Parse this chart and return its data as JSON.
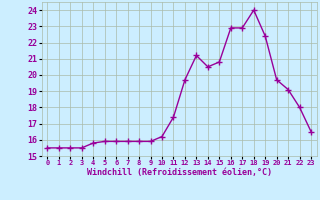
{
  "x": [
    0,
    1,
    2,
    3,
    4,
    5,
    6,
    7,
    8,
    9,
    10,
    11,
    12,
    13,
    14,
    15,
    16,
    17,
    18,
    19,
    20,
    21,
    22,
    23
  ],
  "y": [
    15.5,
    15.5,
    15.5,
    15.5,
    15.8,
    15.9,
    15.9,
    15.9,
    15.9,
    15.9,
    16.2,
    17.4,
    19.7,
    21.2,
    20.5,
    20.8,
    22.9,
    22.9,
    24.0,
    22.4,
    19.7,
    19.1,
    18.0,
    16.5
  ],
  "line_color": "#990099",
  "marker": "+",
  "marker_size": 4,
  "line_width": 1.0,
  "xlabel": "Windchill (Refroidissement éolien,°C)",
  "xlim": [
    -0.5,
    23.5
  ],
  "ylim": [
    15,
    24.5
  ],
  "yticks": [
    15,
    16,
    17,
    18,
    19,
    20,
    21,
    22,
    23,
    24
  ],
  "xticks": [
    0,
    1,
    2,
    3,
    4,
    5,
    6,
    7,
    8,
    9,
    10,
    11,
    12,
    13,
    14,
    15,
    16,
    17,
    18,
    19,
    20,
    21,
    22,
    23
  ],
  "background_color": "#cceeff",
  "grid_color": "#aabbaa",
  "tick_color": "#990099",
  "label_color": "#990099"
}
